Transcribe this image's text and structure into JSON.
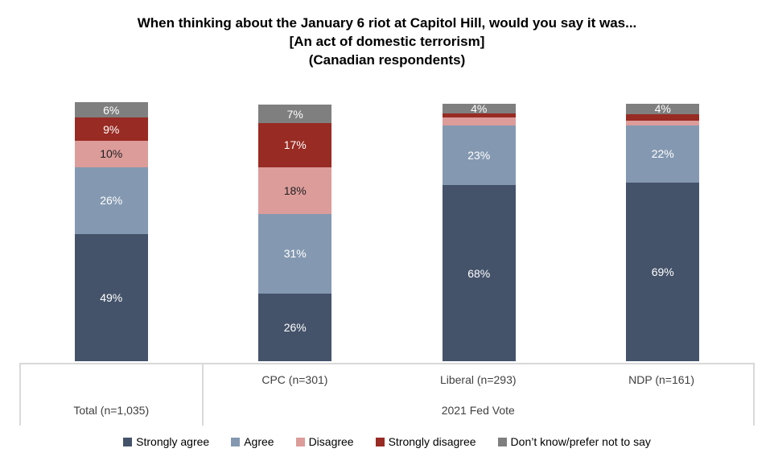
{
  "title": {
    "line1": "When thinking about the January 6 riot at Capitol Hill, would you say it was...",
    "line2": "[An act of domestic terrorism]",
    "line3": "(Canadian respondents)"
  },
  "chart_data": {
    "type": "bar",
    "stacked": true,
    "orientation": "vertical",
    "grid": false,
    "ylim": [
      0,
      100
    ],
    "legend_position": "bottom",
    "categories": [
      "Total (n=1,035)",
      "CPC (n=301)",
      "Liberal (n=293)",
      "NDP (n=161)"
    ],
    "group_label": "2021 Fed Vote",
    "axis_groups": [
      {
        "label": "Total (n=1,035)",
        "categories_spanned": [
          "Total (n=1,035)"
        ]
      },
      {
        "label": "2021 Fed Vote",
        "categories_spanned": [
          "CPC (n=301)",
          "Liberal (n=293)",
          "NDP (n=161)"
        ]
      }
    ],
    "series": [
      {
        "name": "Strongly agree",
        "color": "#44536A",
        "label_color": "#FFFFFF",
        "values": [
          49,
          26,
          68,
          69
        ],
        "labels": [
          "49%",
          "26%",
          "68%",
          "69%"
        ]
      },
      {
        "name": "Agree",
        "color": "#8499B1",
        "label_color": "#FFFFFF",
        "values": [
          26,
          31,
          23,
          22
        ],
        "labels": [
          "26%",
          "31%",
          "23%",
          "22%"
        ]
      },
      {
        "name": "Disagree",
        "color": "#DC9C9A",
        "label_color": "#1F1F1F",
        "values": [
          10,
          18,
          3,
          2
        ],
        "labels": [
          "10%",
          "18%",
          "",
          ""
        ]
      },
      {
        "name": "Strongly disagree",
        "color": "#982B23",
        "label_color": "#FFFFFF",
        "values": [
          9,
          17,
          1.5,
          2.5
        ],
        "labels": [
          "9%",
          "17%",
          "",
          ""
        ]
      },
      {
        "name": "Don’t know/prefer not to say",
        "color": "#7F7F7F",
        "label_color": "#FFFFFF",
        "values": [
          6,
          7,
          4,
          4
        ],
        "labels": [
          "6%",
          "7%",
          "4%",
          "4%"
        ]
      }
    ]
  },
  "legend": {
    "items": [
      {
        "label": "Strongly agree",
        "color": "#44536A"
      },
      {
        "label": "Agree",
        "color": "#8499B1"
      },
      {
        "label": "Disagree",
        "color": "#DC9C9A"
      },
      {
        "label": "Strongly disagree",
        "color": "#982B23"
      },
      {
        "label": "Don’t know/prefer not to say",
        "color": "#7F7F7F"
      }
    ]
  },
  "colors": {
    "background": "#FFFFFF",
    "axis_line": "#D9D9D9",
    "axis_text": "#404040",
    "title_text": "#000000"
  }
}
